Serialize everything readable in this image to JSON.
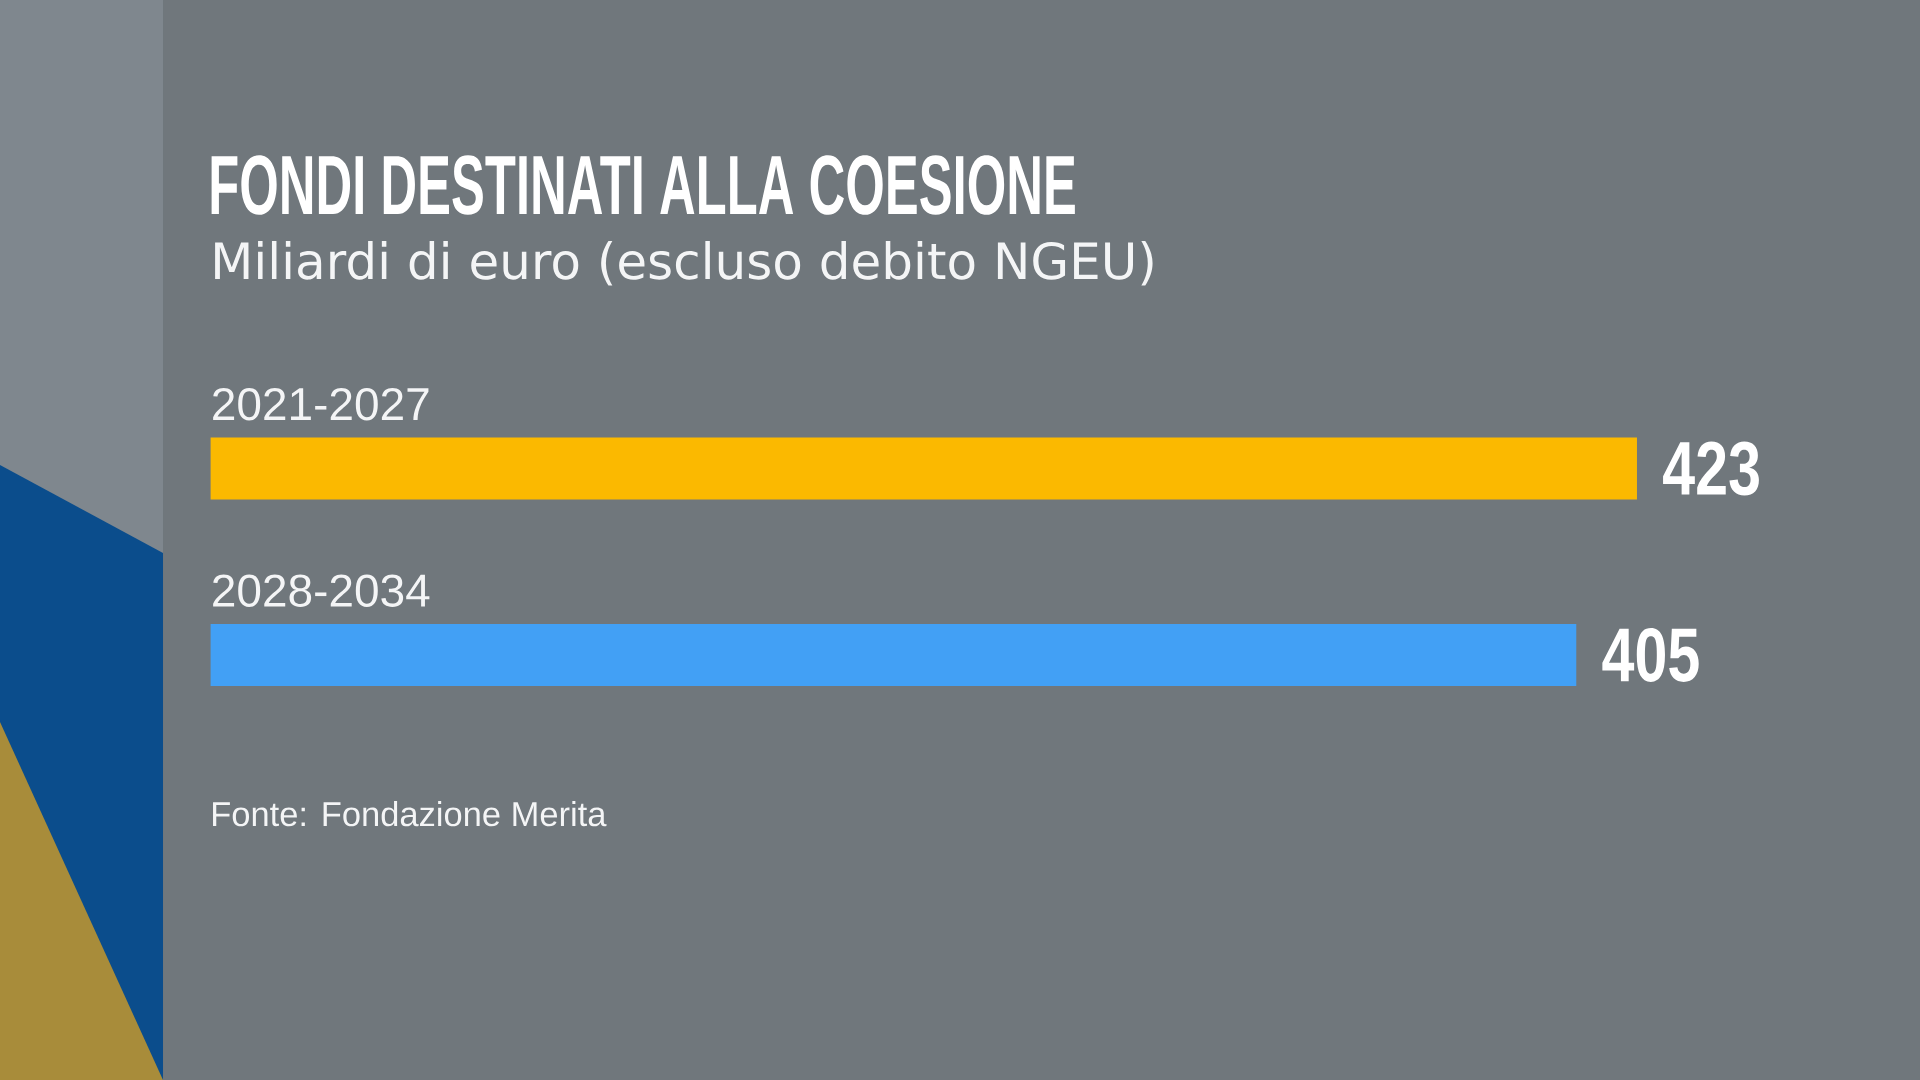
{
  "chart_data": {
    "type": "bar",
    "orientation": "horizontal",
    "title": "FONDI DESTINATI ALLA COESIONE",
    "subtitle": "Miliardi di euro (escluso debito NGEU)",
    "categories": [
      "2021-2027",
      "2028-2034"
    ],
    "values": [
      423,
      405
    ],
    "colors": [
      "#fbb900",
      "#42a0f5"
    ],
    "data_labels": true,
    "annotations": [
      "Fonte: Fondazione Merita"
    ]
  }
}
